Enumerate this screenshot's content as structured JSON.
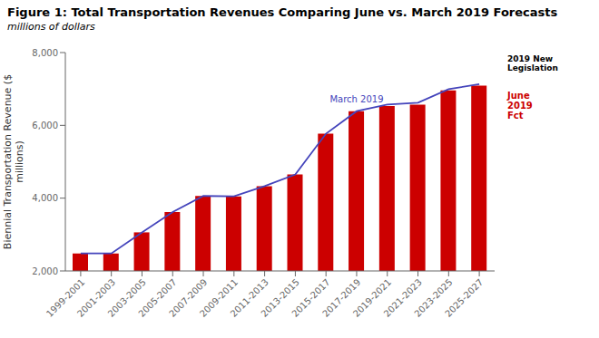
{
  "chart_data": {
    "type": "bar",
    "title": "Figure 1: Total Transportation Revenues Comparing June vs. March 2019 Forecasts",
    "subtitle": "millions of dollars",
    "ylabel": "Biennial Transportation Revenue ($\nmillions)",
    "categories": [
      "1999-2001",
      "2001-2003",
      "2003-2005",
      "2005-2007",
      "2007-2009",
      "2009-2011",
      "2011-2013",
      "2013-2015",
      "2015-2017",
      "2017-2019",
      "2019-2021",
      "2021-2023",
      "2023-2025",
      "2025-2027"
    ],
    "series": [
      {
        "name": "June\n2019\nFct",
        "type": "bar",
        "color": "#CC0000",
        "values": [
          2480,
          2480,
          3060,
          3620,
          4060,
          4050,
          4330,
          4650,
          5770,
          6390,
          6530,
          6570,
          6960,
          7090
        ]
      },
      {
        "name": "March 2019",
        "type": "line",
        "color": "#4444BB",
        "values": [
          2480,
          2480,
          3060,
          3620,
          4060,
          4050,
          4330,
          4650,
          5770,
          6390,
          6570,
          6620,
          6995,
          7130
        ]
      }
    ],
    "ylim": [
      2000,
      8000
    ],
    "yticks": [
      {
        "value": 2000,
        "label": "2,000"
      },
      {
        "value": 4000,
        "label": "4,000"
      },
      {
        "value": 6000,
        "label": "6,000"
      },
      {
        "value": 8000,
        "label": "8,000"
      }
    ],
    "annotations": [
      "2019 New\nLegislation"
    ],
    "grid": false
  }
}
